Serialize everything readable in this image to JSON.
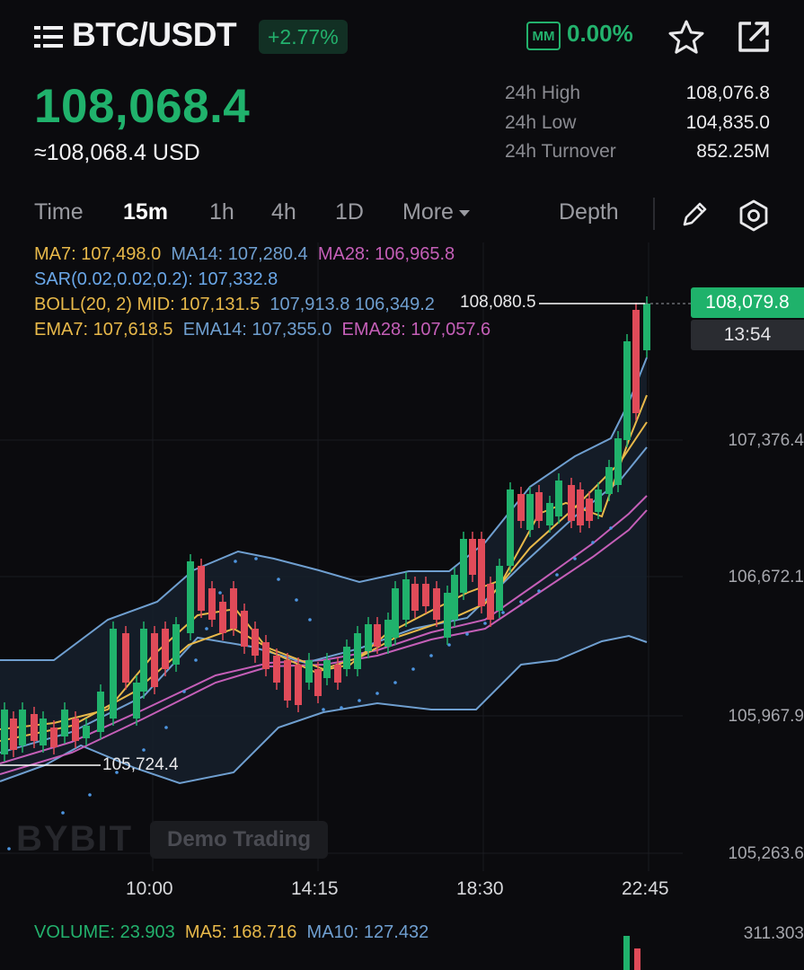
{
  "header": {
    "pair": "BTC/USDT",
    "change": "+2.77%",
    "mm_label": "MM",
    "mm_value": "0.00%"
  },
  "price": {
    "last": "108,068.4",
    "usd": "≈108,068.4 USD"
  },
  "stats": [
    {
      "label": "24h High",
      "value": "108,076.8"
    },
    {
      "label": "24h Low",
      "value": "104,835.0"
    },
    {
      "label": "24h Turnover",
      "value": "852.25M"
    }
  ],
  "tabs": {
    "time": "Time",
    "m15": "15m",
    "h1": "1h",
    "h4": "4h",
    "d1": "1D",
    "more": "More",
    "depth": "Depth"
  },
  "indicators": {
    "ma7": "MA7: 107,498.0",
    "ma14": "MA14: 107,280.4",
    "ma28": "MA28: 106,965.8",
    "sar": "SAR(0.02,0.02,0.2): 107,332.8",
    "boll_mid": "BOLL(20, 2) MID: 107,131.5",
    "boll_up": "107,913.8",
    "boll_low": "106,349.2",
    "ema7": "EMA7: 107,618.5",
    "ema14": "EMA14: 107,355.0",
    "ema28": "EMA28: 107,057.6"
  },
  "chart": {
    "last_price_tag": "108,079.8",
    "countdown": "13:54",
    "high_mark": "108,080.5",
    "low_mark": "105,724.4",
    "y_ticks": [
      "107,376.4",
      "106,672.1",
      "105,967.9",
      "105,263.6"
    ],
    "x_ticks": [
      "10:00",
      "14:15",
      "18:30",
      "22:45"
    ],
    "watermark": "BYBIT",
    "demo_label": "Demo Trading",
    "up_color": "#20b26c",
    "down_color": "#e04b59"
  },
  "volume": {
    "vol": "VOLUME: 23.903",
    "ma5": "MA5: 168.716",
    "ma10": "MA10: 127.432",
    "axis_max": "311.303"
  }
}
